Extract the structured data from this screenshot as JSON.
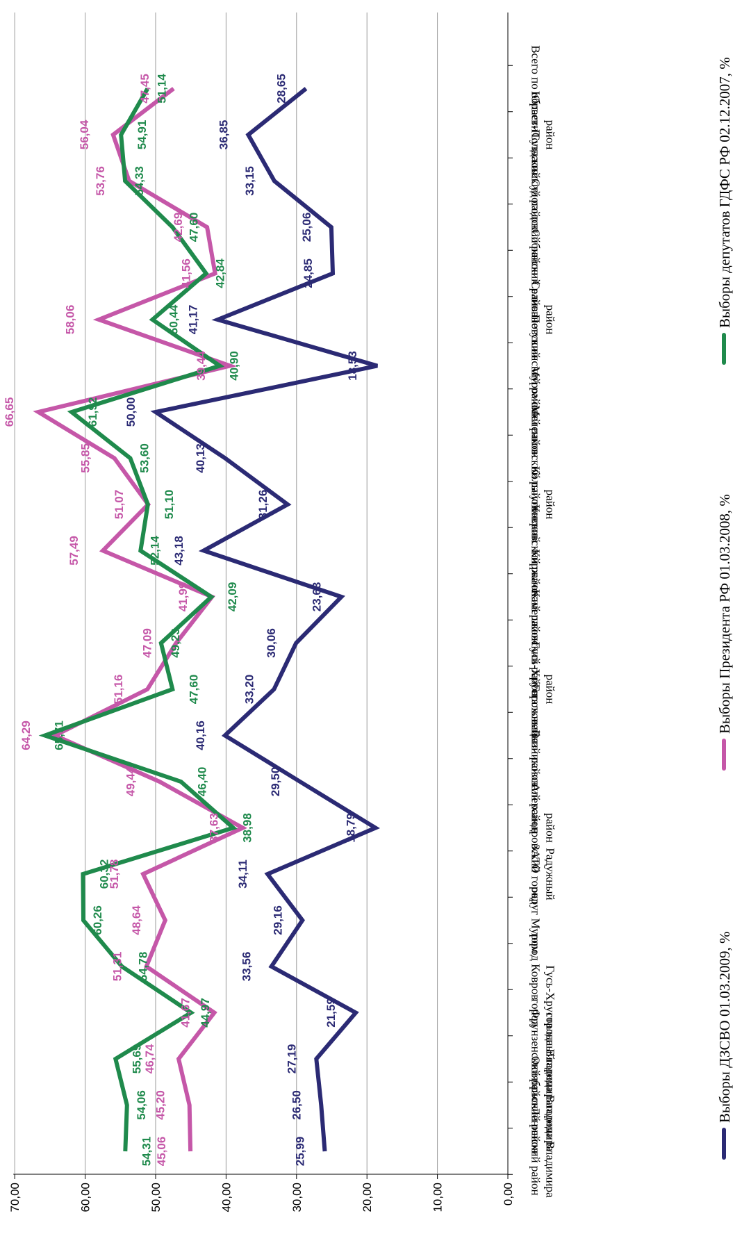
{
  "chart_data": {
    "type": "line",
    "title": "",
    "xlabel": "",
    "ylabel": "",
    "ylim": [
      0,
      70
    ],
    "yticks": [
      "0,00",
      "10,00",
      "20,00",
      "30,00",
      "40,00",
      "50,00",
      "60,00",
      "70,00"
    ],
    "grid": true,
    "legend_position": "bottom",
    "categories": [
      "Ленинский район города Владимира",
      "Октябрьский район города Владимира",
      "Фрунзенский район города Владимира",
      "город Гусь-Хрустальный",
      "город Ковров",
      "округ Муром",
      "ЗАТО город Радужный",
      "Александровский район",
      "Вязниковский район",
      "Гороховецкий район",
      "Гусь-Хрустальный район",
      "Камешковский район",
      "Киржачский район",
      "Ковровский район",
      "Кольчугинский район",
      "Меленковский район",
      "Муромский район",
      "Петушинский район",
      "Селивановский район",
      "Собинский район",
      "Судогодский район",
      "Суздальский район",
      "Юрьев-Польский район",
      "Всего по области"
    ],
    "series": [
      {
        "name": "Выборы ДЗСВО 01.03.2009, %",
        "color": "#2b2a74",
        "values": [
          25.99,
          26.5,
          27.19,
          21.59,
          33.56,
          29.16,
          34.11,
          18.79,
          29.5,
          40.16,
          33.2,
          30.06,
          23.63,
          43.18,
          31.26,
          40.13,
          50.0,
          18.53,
          41.17,
          24.85,
          25.06,
          33.15,
          36.85,
          28.65
        ],
        "labels": [
          "25,99",
          "26,50",
          "27,19",
          "21,59",
          "33,56",
          "29,16",
          "34,11",
          "18,79",
          "29,50",
          "40,16",
          "33,20",
          "30,06",
          "23,63",
          "43,18",
          "31,26",
          "40,13",
          "50,00",
          "18,53",
          "41,17",
          "24,85",
          "25,06",
          "33,15",
          "36,85",
          "28,65"
        ]
      },
      {
        "name": "Выборы Президента РФ 01.03.2008, %",
        "color": "#c557a8",
        "values": [
          45.06,
          45.2,
          46.74,
          41.67,
          51.31,
          48.64,
          51.78,
          37.63,
          49.44,
          64.29,
          51.16,
          47.09,
          41.99,
          57.49,
          51.07,
          55.85,
          66.65,
          39.44,
          58.06,
          41.56,
          42.69,
          53.76,
          56.04,
          47.45
        ],
        "labels": [
          "45,06",
          "45,20",
          "46,74",
          "41,67",
          "51,31",
          "48,64",
          "51,78",
          "37,63",
          "49,44",
          "64,29",
          "51,16",
          "47,09",
          "41,99",
          "57,49",
          "51,07",
          "55,85",
          "66,65",
          "39,44",
          "58,06",
          "41,56",
          "42,69",
          "53,76",
          "56,04",
          "47,45"
        ]
      },
      {
        "name": "Выборы депутатов ГДФС РФ 02.12.2007, %",
        "color": "#1f8a4c",
        "values": [
          54.31,
          54.06,
          55.69,
          44.97,
          54.78,
          60.26,
          60.32,
          38.98,
          46.4,
          65.71,
          47.6,
          49.23,
          42.09,
          52.14,
          51.1,
          53.6,
          61.92,
          40.9,
          50.44,
          42.84,
          47.6,
          54.33,
          54.91,
          51.14
        ],
        "labels": [
          "54,31",
          "54,06",
          "55,69",
          "44,97",
          "54,78",
          "60,26",
          "60,32",
          "38,98",
          "46,40",
          "65,71",
          "47,60",
          "49,23",
          "42,09",
          "52,14",
          "51,10",
          "53,60",
          "61,92",
          "40,90",
          "50,44",
          "42,84",
          "47,60",
          "54,33",
          "54,91",
          "51,14"
        ]
      }
    ]
  }
}
